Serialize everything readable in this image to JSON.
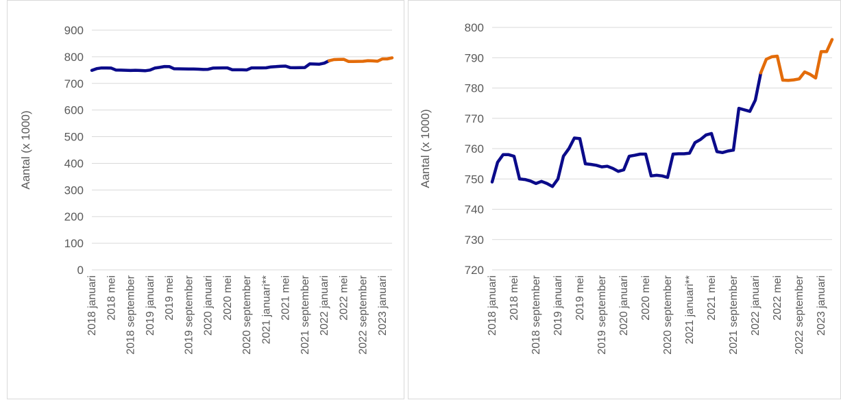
{
  "colors": {
    "actual": "#0b0b8a",
    "forecast": "#e36c0a",
    "grid": "#d9d9d9",
    "text": "#595959"
  },
  "chart_data": [
    {
      "type": "line",
      "title": "",
      "xlabel": "",
      "ylabel": "Aantal (x 1000)",
      "ylim": [
        0,
        900
      ],
      "yticks": [
        0,
        100,
        200,
        300,
        400,
        500,
        600,
        700,
        800,
        900
      ],
      "grid": true,
      "xtick_labels": [
        "2018 januari",
        "2018 mei",
        "2018 september",
        "2019 januari",
        "2019 mei",
        "2019 september",
        "2020 januari",
        "2020 mei",
        "2020 september",
        "2021 januari**",
        "2021 mei",
        "2021 september",
        "2022 januari",
        "2022 mei",
        "2022 september",
        "2023 januari"
      ],
      "series": [
        {
          "color": "#0b0b8a",
          "values": [
            749,
            755.5,
            758,
            758,
            757.5,
            750,
            749.8,
            749.3,
            748.5,
            749.2,
            748.5,
            747.5,
            750,
            757.5,
            760,
            763.5,
            763.3,
            755,
            754.8,
            754.5,
            754,
            754.2,
            753.5,
            752.5,
            753,
            757.5,
            757.8,
            758.2,
            758.2,
            751,
            751.2,
            751,
            750.5,
            758.2,
            758.3,
            758.3,
            758.5,
            762,
            763,
            764.5,
            765,
            759,
            758.7,
            759.2,
            759.5,
            773.3,
            772.8,
            772.3,
            776,
            785
          ]
        },
        {
          "color": "#e36c0a",
          "start_index": 49,
          "values": [
            785,
            789.5,
            790.3,
            790.5,
            782.6,
            782.5,
            782.7,
            783,
            785.3,
            784.5,
            783.3,
            792,
            792,
            796
          ]
        }
      ]
    },
    {
      "type": "line",
      "title": "",
      "xlabel": "",
      "ylabel": "Aantal (x 1000)",
      "ylim": [
        720,
        800
      ],
      "yticks": [
        720,
        730,
        740,
        750,
        760,
        770,
        780,
        790,
        800
      ],
      "grid": true,
      "xtick_labels": [
        "2018 januari",
        "2018 mei",
        "2018 september",
        "2019 januari",
        "2019 mei",
        "2019 september",
        "2020 januari",
        "2020 mei",
        "2020 september",
        "2021 januari**",
        "2021 mei",
        "2021 september",
        "2022 januari",
        "2022 mei",
        "2022 september",
        "2023 januari"
      ],
      "series": [
        {
          "color": "#0b0b8a",
          "values": [
            749,
            755.5,
            758,
            758,
            757.5,
            750,
            749.8,
            749.3,
            748.5,
            749.2,
            748.5,
            747.5,
            750,
            757.5,
            760,
            763.5,
            763.3,
            755,
            754.8,
            754.5,
            754,
            754.2,
            753.5,
            752.5,
            753,
            757.5,
            757.8,
            758.2,
            758.2,
            751,
            751.2,
            751,
            750.5,
            758.2,
            758.3,
            758.3,
            758.5,
            762,
            763,
            764.5,
            765,
            759,
            758.7,
            759.2,
            759.5,
            773.3,
            772.8,
            772.3,
            776,
            785
          ]
        },
        {
          "color": "#e36c0a",
          "start_index": 49,
          "values": [
            785,
            789.5,
            790.3,
            790.5,
            782.6,
            782.5,
            782.7,
            783,
            785.3,
            784.5,
            783.3,
            792,
            792,
            796
          ]
        }
      ]
    }
  ]
}
